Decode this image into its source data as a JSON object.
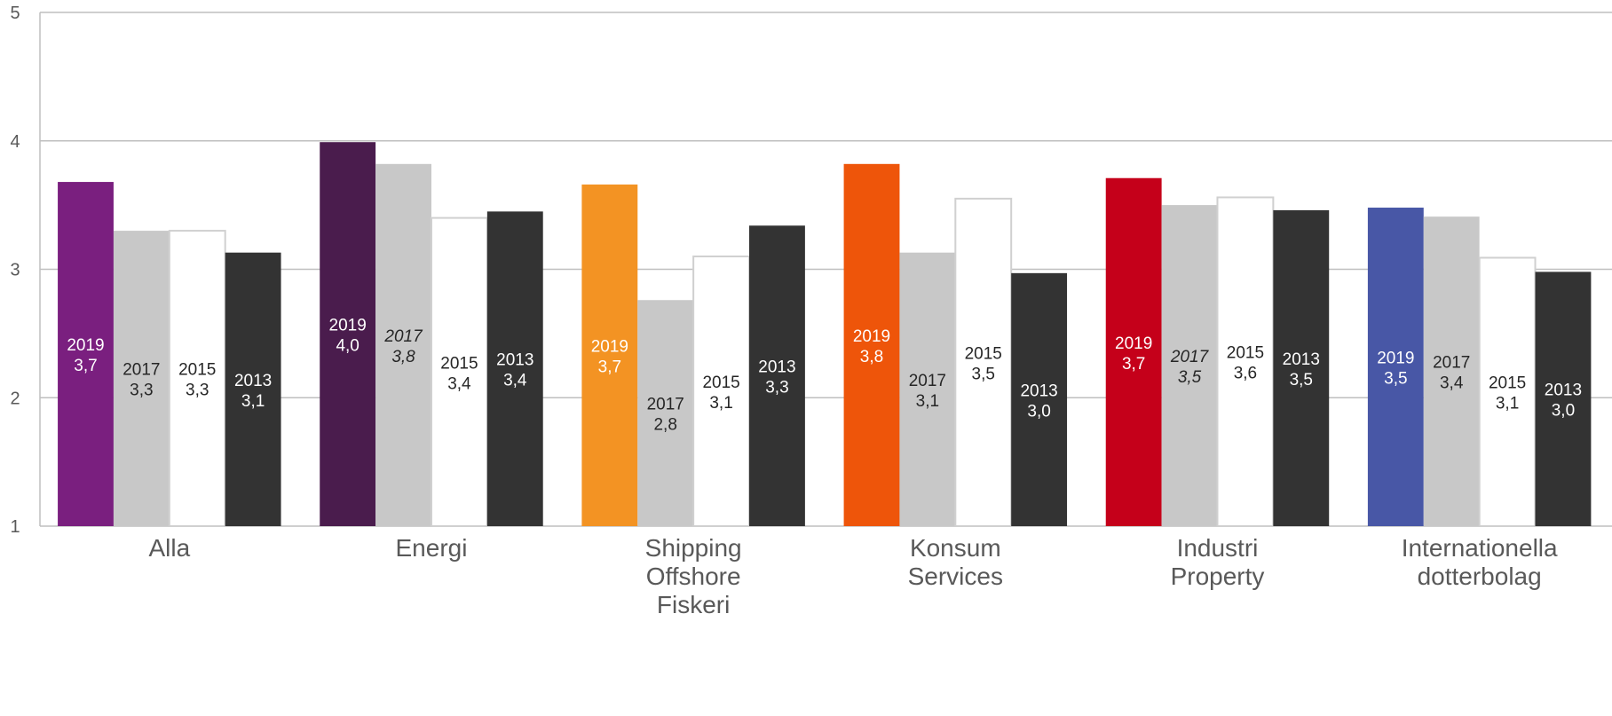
{
  "chart_data": {
    "type": "bar",
    "categories": [
      [
        "Alla"
      ],
      [
        "Energi"
      ],
      [
        "Shipping",
        "Offshore",
        "Fiskeri"
      ],
      [
        "Konsum",
        "Services"
      ],
      [
        "Industri",
        "Property"
      ],
      [
        "Internationella",
        "dotterbolag"
      ]
    ],
    "ylim": [
      1,
      5
    ],
    "yticks": [
      "1",
      "2",
      "3",
      "4",
      "5"
    ],
    "grid": true,
    "series": [
      {
        "name": "2019",
        "values": [
          3.68,
          3.99,
          3.66,
          3.82,
          3.71,
          3.48
        ],
        "labels": [
          "3,7",
          "4,0",
          "3,7",
          "3,8",
          "3,7",
          "3,5"
        ],
        "colors": [
          "#7A1F7F",
          "#4A1C4D",
          "#F39323",
          "#EE550A",
          "#C5001A",
          "#4857A6"
        ],
        "label_colors": [
          "#ffffff",
          "#ffffff",
          "#ffffff",
          "#ffffff",
          "#ffffff",
          "#ffffff"
        ],
        "italic": [
          false,
          false,
          false,
          false,
          false,
          false
        ]
      },
      {
        "name": "2017",
        "values": [
          3.3,
          3.82,
          2.76,
          3.13,
          3.5,
          3.41
        ],
        "labels": [
          "3,3",
          "3,8",
          "2,8",
          "3,1",
          "3,5",
          "3,4"
        ],
        "colors": [
          "#C8C8C8",
          "#C8C8C8",
          "#C8C8C8",
          "#C8C8C8",
          "#C8C8C8",
          "#C8C8C8"
        ],
        "label_colors": [
          "#262626",
          "#262626",
          "#262626",
          "#262626",
          "#262626",
          "#262626"
        ],
        "italic": [
          false,
          true,
          false,
          false,
          true,
          false
        ]
      },
      {
        "name": "2015",
        "values": [
          3.3,
          3.4,
          3.1,
          3.55,
          3.56,
          3.09
        ],
        "labels": [
          "3,3",
          "3,4",
          "3,1",
          "3,5",
          "3,6",
          "3,1"
        ],
        "colors": [
          "#ffffff",
          "#ffffff",
          "#ffffff",
          "#ffffff",
          "#ffffff",
          "#ffffff"
        ],
        "label_colors": [
          "#262626",
          "#262626",
          "#262626",
          "#262626",
          "#262626",
          "#262626"
        ],
        "italic": [
          false,
          false,
          false,
          false,
          false,
          false
        ]
      },
      {
        "name": "2013",
        "values": [
          3.13,
          3.45,
          3.34,
          2.97,
          3.46,
          2.98
        ],
        "labels": [
          "3,1",
          "3,4",
          "3,3",
          "3,0",
          "3,5",
          "3,0"
        ],
        "colors": [
          "#333333",
          "#333333",
          "#333333",
          "#333333",
          "#333333",
          "#333333"
        ],
        "label_colors": [
          "#ffffff",
          "#ffffff",
          "#ffffff",
          "#ffffff",
          "#ffffff",
          "#ffffff"
        ],
        "italic": [
          false,
          false,
          false,
          false,
          false,
          false
        ]
      }
    ]
  }
}
